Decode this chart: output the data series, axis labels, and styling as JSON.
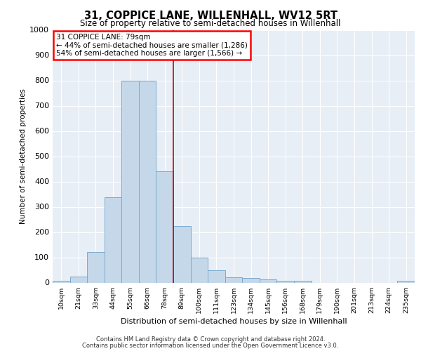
{
  "title": "31, COPPICE LANE, WILLENHALL, WV12 5RT",
  "subtitle": "Size of property relative to semi-detached houses in Willenhall",
  "xlabel": "Distribution of semi-detached houses by size in Willenhall",
  "ylabel": "Number of semi-detached properties",
  "categories": [
    "10sqm",
    "21sqm",
    "33sqm",
    "44sqm",
    "55sqm",
    "66sqm",
    "78sqm",
    "89sqm",
    "100sqm",
    "111sqm",
    "123sqm",
    "134sqm",
    "145sqm",
    "156sqm",
    "168sqm",
    "179sqm",
    "190sqm",
    "201sqm",
    "213sqm",
    "224sqm",
    "235sqm"
  ],
  "values": [
    8,
    25,
    120,
    338,
    800,
    800,
    440,
    225,
    100,
    48,
    22,
    18,
    12,
    8,
    8,
    0,
    0,
    0,
    0,
    0,
    8
  ],
  "bar_color": "#c5d8ea",
  "bar_edge_color": "#7aabcf",
  "vline_color": "#cc0000",
  "vline_x": 6.5,
  "annotation_line1": "31 COPPICE LANE: 79sqm",
  "annotation_line2": "← 44% of semi-detached houses are smaller (1,286)",
  "annotation_line3": "54% of semi-detached houses are larger (1,566) →",
  "ylim": [
    0,
    1000
  ],
  "yticks": [
    0,
    100,
    200,
    300,
    400,
    500,
    600,
    700,
    800,
    900,
    1000
  ],
  "bg_color": "#e8eef5",
  "footer_line1": "Contains HM Land Registry data © Crown copyright and database right 2024.",
  "footer_line2": "Contains public sector information licensed under the Open Government Licence v3.0."
}
